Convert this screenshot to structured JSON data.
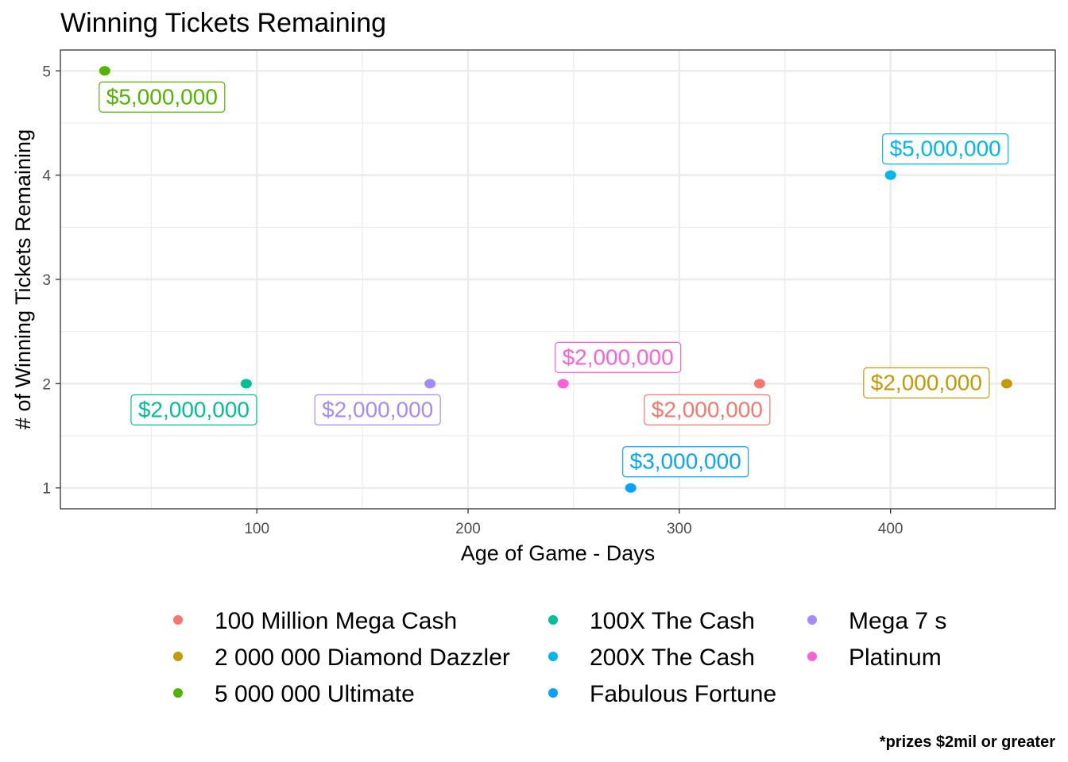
{
  "chart_data": {
    "type": "scatter",
    "title": "Winning Tickets Remaining",
    "xlabel": "Age of Game - Days",
    "ylabel": "# of Winning Tickets Remaining",
    "xlim": [
      7,
      478
    ],
    "ylim": [
      0.8,
      5.2
    ],
    "x_ticks": [
      100,
      200,
      300,
      400
    ],
    "y_ticks": [
      1,
      2,
      3,
      4,
      5
    ],
    "grid": true,
    "legend_position": "bottom",
    "caption": "*prizes $2mil or greater",
    "series": [
      {
        "name": "100 Million Mega Cash",
        "color": "#F8766D",
        "x": [
          338
        ],
        "y": [
          2
        ],
        "label": "$2,000,000",
        "label_side": "below-left"
      },
      {
        "name": "2 000 000 Diamond Dazzler",
        "color": "#C49A00",
        "x": [
          455
        ],
        "y": [
          2
        ],
        "label": "$2,000,000",
        "label_side": "left"
      },
      {
        "name": "5 000 000 Ultimate",
        "color": "#53B400",
        "x": [
          28
        ],
        "y": [
          5
        ],
        "label": "$5,000,000",
        "label_side": "below-right"
      },
      {
        "name": "100X The Cash",
        "color": "#00C094",
        "x": [
          95
        ],
        "y": [
          2
        ],
        "label": "$2,000,000",
        "label_side": "below-left"
      },
      {
        "name": "200X The Cash",
        "color": "#00B6EB",
        "x": [
          400
        ],
        "y": [
          4
        ],
        "label": "$5,000,000",
        "label_side": "above-right"
      },
      {
        "name": "Fabulous Fortune",
        "color": "#06A4FF",
        "x": [
          277
        ],
        "y": [
          1
        ],
        "label": "$3,000,000",
        "label_side": "above-right"
      },
      {
        "name": "Mega 7   s",
        "color": "#A58AFF",
        "x": [
          182
        ],
        "y": [
          2
        ],
        "label": "$2,000,000",
        "label_side": "below-left"
      },
      {
        "name": "Platinum",
        "color": "#FB61D7",
        "x": [
          245
        ],
        "y": [
          2
        ],
        "label": "$2,000,000",
        "label_side": "above-right"
      }
    ]
  }
}
